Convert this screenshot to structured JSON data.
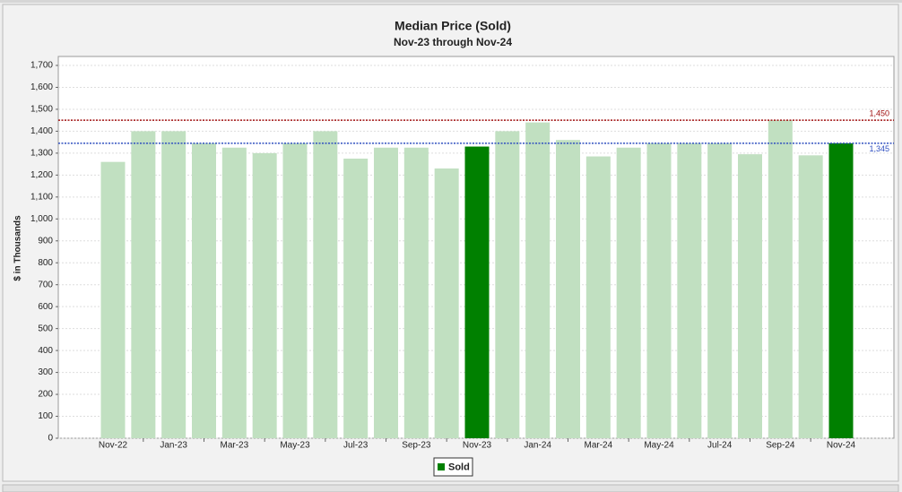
{
  "chart_data": {
    "type": "bar",
    "title": "Median Price (Sold)",
    "subtitle": "Nov-23 through Nov-24",
    "y_label": "$ in Thousands",
    "categories": [
      "Nov-22",
      null,
      "Jan-23",
      null,
      "Mar-23",
      null,
      "May-23",
      null,
      "Jul-23",
      null,
      "Sep-23",
      null,
      "Nov-23",
      null,
      "Jan-24",
      null,
      "Mar-24",
      null,
      "May-24",
      null,
      "Jul-24",
      null,
      "Sep-24",
      null,
      "Nov-24"
    ],
    "series": [
      {
        "name": "Sold",
        "color": "#008000",
        "values": [
          1260,
          1400,
          1400,
          1345,
          1325,
          1300,
          1345,
          1400,
          1275,
          1325,
          1325,
          1230,
          1330,
          1400,
          1440,
          1360,
          1285,
          1325,
          1345,
          1345,
          1345,
          1295,
          1450,
          1290,
          1345
        ],
        "colors": [
          "#c1e0c1",
          "#c1e0c1",
          "#c1e0c1",
          "#c1e0c1",
          "#c1e0c1",
          "#c1e0c1",
          "#c1e0c1",
          "#c1e0c1",
          "#c1e0c1",
          "#c1e0c1",
          "#c1e0c1",
          "#c1e0c1",
          "#008000",
          "#c1e0c1",
          "#c1e0c1",
          "#c1e0c1",
          "#c1e0c1",
          "#c1e0c1",
          "#c1e0c1",
          "#c1e0c1",
          "#c1e0c1",
          "#c1e0c1",
          "#c1e0c1",
          "#c1e0c1",
          "#008000"
        ]
      }
    ],
    "reference_lines": [
      {
        "value": 1450,
        "label": "1,450",
        "color": "#a01010"
      },
      {
        "value": 1345,
        "label": "1,345",
        "color": "#3050c0"
      }
    ],
    "ylim": [
      0,
      1700
    ],
    "yticks": [
      0,
      100,
      200,
      300,
      400,
      500,
      600,
      700,
      800,
      900,
      {
        "value": 1000,
        "label": "1,000"
      },
      {
        "value": 1100,
        "label": "1,100"
      },
      {
        "value": 1200,
        "label": "1,200"
      },
      {
        "value": 1300,
        "label": "1,300"
      },
      {
        "value": 1400,
        "label": "1,400"
      },
      {
        "value": 1500,
        "label": "1,500"
      },
      {
        "value": 1600,
        "label": "1,600"
      },
      {
        "value": 1700,
        "label": "1,700"
      }
    ],
    "grid": true
  }
}
